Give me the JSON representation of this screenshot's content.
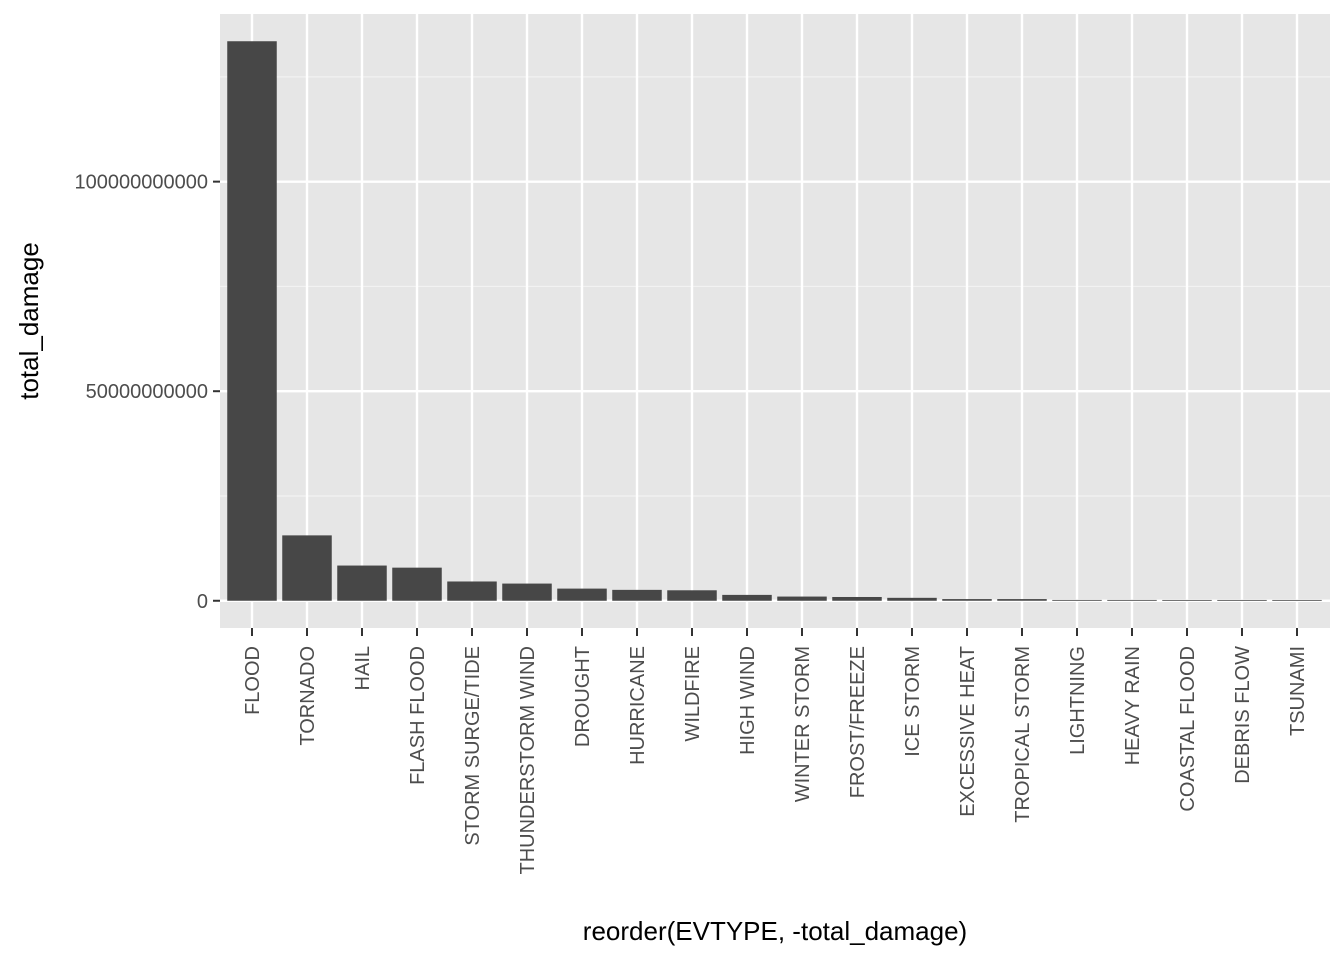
{
  "chart_data": {
    "type": "bar",
    "title": "",
    "xlabel": "reorder(EVTYPE, -total_damage)",
    "ylabel": "total_damage",
    "categories": [
      "FLOOD",
      "TORNADO",
      "HAIL",
      "FLASH FLOOD",
      "STORM SURGE/TIDE",
      "THUNDERSTORM WIND",
      "DROUGHT",
      "HURRICANE",
      "WILDFIRE",
      "HIGH WIND",
      "WINTER STORM",
      "FROST/FREEZE",
      "ICE STORM",
      "EXCESSIVE HEAT",
      "TROPICAL STORM",
      "LIGHTNING",
      "HEAVY RAIN",
      "COASTAL FLOOD",
      "DEBRIS FLOW",
      "TSUNAMI"
    ],
    "values": [
      133500000000,
      15600000000,
      8400000000,
      7900000000,
      4600000000,
      4100000000,
      2900000000,
      2600000000,
      2500000000,
      1400000000,
      1000000000,
      900000000,
      700000000,
      400000000,
      400000000,
      200000000,
      200000000,
      150000000,
      150000000,
      100000000
    ],
    "y_ticks": [
      0,
      50000000000,
      100000000000
    ],
    "y_tick_labels": [
      "0",
      "50000000000",
      "100000000000"
    ],
    "ylim": [
      -6500000000,
      140000000000
    ],
    "grid": true,
    "legend": "none",
    "colors": {
      "panel_background": "#e6e6e6",
      "grid_major": "#ffffff",
      "grid_minor": "#f2f2f2",
      "bar_fill": "#474747",
      "tick_mark": "#333333"
    }
  }
}
